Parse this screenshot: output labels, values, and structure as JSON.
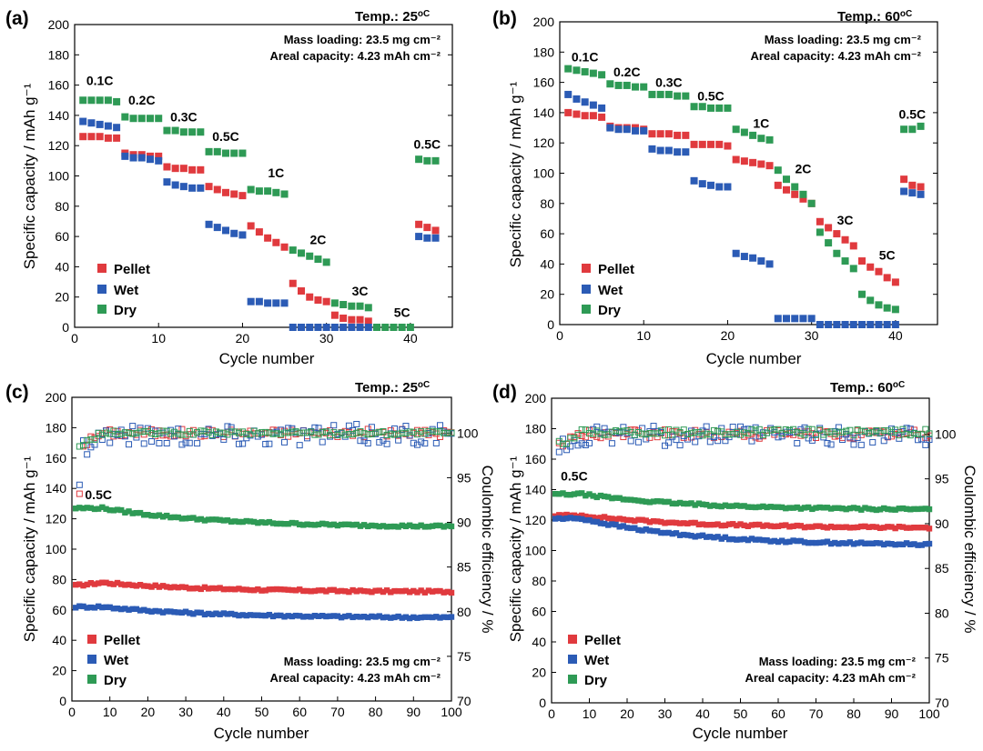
{
  "colors": {
    "pellet": "#e03a3e",
    "wet": "#2b5bb5",
    "dry": "#2e9a55"
  },
  "chart_data": [
    {
      "id": "a",
      "type": "scatter",
      "panel_label": "(a)",
      "temp_label": "Temp.: 25",
      "temp_unit": "oC",
      "info_lines": [
        "Mass loading: 23.5 mg cm⁻²",
        "Areal capacity: 4.23 mAh cm⁻²"
      ],
      "xlabel": "Cycle number",
      "ylabel": "Specific capacity / mAh g⁻¹",
      "xlim": [
        0,
        45
      ],
      "ylim": [
        0,
        200
      ],
      "xticks": [
        "0",
        "10",
        "20",
        "30",
        "40"
      ],
      "yticks": [
        "0",
        "20",
        "40",
        "60",
        "80",
        "100",
        "120",
        "140",
        "160",
        "180",
        "200"
      ],
      "legend": [
        "Pellet",
        "Wet",
        "Dry"
      ],
      "rate_labels": [
        {
          "text": "0.1C",
          "x": 3,
          "y": 160
        },
        {
          "text": "0.2C",
          "x": 8,
          "y": 147
        },
        {
          "text": "0.3C",
          "x": 13,
          "y": 136
        },
        {
          "text": "0.5C",
          "x": 18,
          "y": 123
        },
        {
          "text": "1C",
          "x": 24,
          "y": 99
        },
        {
          "text": "2C",
          "x": 29,
          "y": 55
        },
        {
          "text": "3C",
          "x": 34,
          "y": 21
        },
        {
          "text": "5C",
          "x": 39,
          "y": 7
        },
        {
          "text": "0.5C",
          "x": 42,
          "y": 118
        }
      ],
      "series": [
        {
          "name": "Pellet",
          "x": [
            1,
            2,
            3,
            4,
            5,
            6,
            7,
            8,
            9,
            10,
            11,
            12,
            13,
            14,
            15,
            16,
            17,
            18,
            19,
            20,
            21,
            22,
            23,
            24,
            25,
            26,
            27,
            28,
            29,
            30,
            31,
            32,
            33,
            34,
            35,
            41,
            42,
            43
          ],
          "values": [
            126,
            126,
            126,
            125,
            125,
            115,
            114,
            114,
            113,
            113,
            106,
            105,
            105,
            104,
            104,
            93,
            91,
            89,
            88,
            87,
            67,
            63,
            59,
            56,
            53,
            29,
            24,
            20,
            18,
            17,
            8,
            6,
            5,
            5,
            4,
            68,
            66,
            64
          ]
        },
        {
          "name": "Wet",
          "x": [
            1,
            2,
            3,
            4,
            5,
            6,
            7,
            8,
            9,
            10,
            11,
            12,
            13,
            14,
            15,
            16,
            17,
            18,
            19,
            20,
            21,
            22,
            23,
            24,
            25,
            26,
            27,
            28,
            29,
            30,
            31,
            32,
            33,
            34,
            35,
            41,
            42,
            43
          ],
          "values": [
            136,
            135,
            134,
            133,
            132,
            113,
            112,
            112,
            111,
            110,
            96,
            94,
            93,
            92,
            92,
            68,
            66,
            64,
            62,
            61,
            17,
            17,
            16,
            16,
            16,
            0,
            0,
            0,
            0,
            0,
            0,
            0,
            0,
            0,
            0,
            60,
            59,
            59
          ]
        },
        {
          "name": "Dry",
          "x": [
            1,
            2,
            3,
            4,
            5,
            6,
            7,
            8,
            9,
            10,
            11,
            12,
            13,
            14,
            15,
            16,
            17,
            18,
            19,
            20,
            21,
            22,
            23,
            24,
            25,
            26,
            27,
            28,
            29,
            30,
            31,
            32,
            33,
            34,
            35,
            36,
            37,
            38,
            39,
            40,
            41,
            42,
            43
          ],
          "values": [
            150,
            150,
            150,
            150,
            149,
            139,
            138,
            138,
            138,
            138,
            130,
            130,
            129,
            129,
            129,
            116,
            116,
            115,
            115,
            115,
            91,
            90,
            90,
            89,
            88,
            51,
            49,
            47,
            45,
            43,
            16,
            15,
            14,
            14,
            13,
            0,
            0,
            0,
            0,
            0,
            111,
            110,
            110
          ]
        }
      ]
    },
    {
      "id": "b",
      "type": "scatter",
      "panel_label": "(b)",
      "temp_label": "Temp.: 60",
      "temp_unit": "oC",
      "info_lines": [
        "Mass loading: 23.5 mg cm⁻²",
        "Areal capacity: 4.23 mAh cm⁻²"
      ],
      "xlabel": "Cycle number",
      "ylabel": "Specific capacity / mAh g⁻¹",
      "xlim": [
        0,
        45
      ],
      "ylim": [
        0,
        200
      ],
      "xticks": [
        "0",
        "10",
        "20",
        "30",
        "40"
      ],
      "yticks": [
        "0",
        "20",
        "40",
        "60",
        "80",
        "100",
        "120",
        "140",
        "160",
        "180",
        "200"
      ],
      "legend": [
        "Pellet",
        "Wet",
        "Dry"
      ],
      "rate_labels": [
        {
          "text": "0.1C",
          "x": 3,
          "y": 174
        },
        {
          "text": "0.2C",
          "x": 8,
          "y": 164
        },
        {
          "text": "0.3C",
          "x": 13,
          "y": 157
        },
        {
          "text": "0.5C",
          "x": 18,
          "y": 148
        },
        {
          "text": "1C",
          "x": 24,
          "y": 130
        },
        {
          "text": "2C",
          "x": 29,
          "y": 100
        },
        {
          "text": "3C",
          "x": 34,
          "y": 66
        },
        {
          "text": "5C",
          "x": 39,
          "y": 43
        },
        {
          "text": "0.5C",
          "x": 42,
          "y": 136
        }
      ],
      "series": [
        {
          "name": "Pellet",
          "x": [
            1,
            2,
            3,
            4,
            5,
            6,
            7,
            8,
            9,
            10,
            11,
            12,
            13,
            14,
            15,
            16,
            17,
            18,
            19,
            20,
            21,
            22,
            23,
            24,
            25,
            26,
            27,
            28,
            29,
            30,
            31,
            32,
            33,
            34,
            35,
            36,
            37,
            38,
            39,
            40,
            41,
            42,
            43
          ],
          "values": [
            140,
            139,
            138,
            138,
            137,
            131,
            130,
            130,
            130,
            129,
            126,
            126,
            126,
            125,
            125,
            119,
            119,
            119,
            119,
            118,
            109,
            108,
            107,
            106,
            105,
            92,
            89,
            86,
            83,
            80,
            68,
            64,
            60,
            56,
            52,
            42,
            38,
            35,
            31,
            28,
            96,
            92,
            91
          ]
        },
        {
          "name": "Wet",
          "x": [
            1,
            2,
            3,
            4,
            5,
            6,
            7,
            8,
            9,
            10,
            11,
            12,
            13,
            14,
            15,
            16,
            17,
            18,
            19,
            20,
            21,
            22,
            23,
            24,
            25,
            26,
            27,
            28,
            29,
            30,
            31,
            32,
            33,
            34,
            35,
            36,
            37,
            38,
            39,
            40,
            41,
            42,
            43
          ],
          "values": [
            152,
            149,
            147,
            145,
            143,
            130,
            129,
            129,
            128,
            128,
            116,
            115,
            115,
            114,
            114,
            95,
            93,
            92,
            91,
            91,
            47,
            45,
            44,
            42,
            40,
            4,
            4,
            4,
            4,
            4,
            0,
            0,
            0,
            0,
            0,
            0,
            0,
            0,
            0,
            0,
            88,
            87,
            86
          ]
        },
        {
          "name": "Dry",
          "x": [
            1,
            2,
            3,
            4,
            5,
            6,
            7,
            8,
            9,
            10,
            11,
            12,
            13,
            14,
            15,
            16,
            17,
            18,
            19,
            20,
            21,
            22,
            23,
            24,
            25,
            26,
            27,
            28,
            29,
            30,
            31,
            32,
            33,
            34,
            35,
            36,
            37,
            38,
            39,
            40,
            41,
            42,
            43
          ],
          "values": [
            169,
            168,
            167,
            166,
            165,
            159,
            158,
            158,
            157,
            157,
            152,
            152,
            152,
            151,
            151,
            144,
            144,
            143,
            143,
            143,
            129,
            127,
            125,
            123,
            122,
            102,
            96,
            91,
            86,
            80,
            61,
            54,
            47,
            42,
            37,
            20,
            16,
            13,
            11,
            10,
            129,
            129,
            131
          ]
        }
      ]
    },
    {
      "id": "c",
      "type": "scatter",
      "panel_label": "(c)",
      "temp_label": "Temp.: 25",
      "temp_unit": "oC",
      "info_lines": [
        "Mass loading: 23.5 mg cm⁻²",
        "Areal capacity: 4.23 mAh cm⁻²"
      ],
      "xlabel": "Cycle number",
      "ylabel": "Specific capacity / mAh g⁻¹",
      "y2label": "Coulombic efficiency / %",
      "xlim": [
        0,
        100
      ],
      "ylim": [
        0,
        200
      ],
      "y2lim": [
        70,
        104
      ],
      "xticks": [
        "0",
        "10",
        "20",
        "30",
        "40",
        "50",
        "60",
        "70",
        "80",
        "90",
        "100"
      ],
      "yticks": [
        "0",
        "20",
        "40",
        "60",
        "80",
        "100",
        "120",
        "140",
        "160",
        "180",
        "200"
      ],
      "y2ticks": [
        "70",
        "75",
        "80",
        "85",
        "90",
        "95",
        "100"
      ],
      "legend": [
        "Pellet",
        "Wet",
        "Dry"
      ],
      "rate_labels": [
        {
          "text": "0.5C",
          "x": 7,
          "y": 133
        }
      ],
      "capacity": [
        {
          "name": "Pellet",
          "start": 76,
          "peak": 78,
          "end": 72
        },
        {
          "name": "Wet",
          "start": 62,
          "peak": 62,
          "end": 55
        },
        {
          "name": "Dry",
          "start": 127,
          "peak": 127,
          "end": 115
        }
      ],
      "efficiency": [
        {
          "name": "Pellet",
          "first": 93.2,
          "mean": 100,
          "spread": 0.45
        },
        {
          "name": "Wet",
          "first": 94.2,
          "mean": 99.8,
          "spread": 1.2
        },
        {
          "name": "Dry",
          "first": 98.5,
          "mean": 100,
          "spread": 0.25
        }
      ]
    },
    {
      "id": "d",
      "type": "scatter",
      "panel_label": "(d)",
      "temp_label": "Temp.: 60",
      "temp_unit": "oC",
      "info_lines": [
        "Mass loading: 23.5 mg cm⁻²",
        "Areal capacity: 4.23 mAh cm⁻²"
      ],
      "xlabel": "Cycle number",
      "ylabel": "Specific capacity / mAh g⁻¹",
      "y2label": "Coulombic efficiency / %",
      "xlim": [
        0,
        100
      ],
      "ylim": [
        0,
        200
      ],
      "y2lim": [
        70,
        104
      ],
      "xticks": [
        "0",
        "10",
        "20",
        "30",
        "40",
        "50",
        "60",
        "70",
        "80",
        "90",
        "100"
      ],
      "yticks": [
        "0",
        "20",
        "40",
        "60",
        "80",
        "100",
        "120",
        "140",
        "160",
        "180",
        "200"
      ],
      "y2ticks": [
        "70",
        "75",
        "80",
        "85",
        "90",
        "95",
        "100"
      ],
      "legend": [
        "Pellet",
        "Wet",
        "Dry"
      ],
      "rate_labels": [
        {
          "text": "0.5C",
          "x": 6,
          "y": 146
        }
      ],
      "capacity": [
        {
          "name": "Pellet",
          "start": 123,
          "peak": 123,
          "end": 115
        },
        {
          "name": "Wet",
          "start": 121,
          "peak": 121,
          "end": 104
        },
        {
          "name": "Dry",
          "start": 137,
          "peak": 137,
          "end": 127
        }
      ],
      "efficiency": [
        {
          "name": "Pellet",
          "first": 99,
          "mean": 100,
          "spread": 0.5
        },
        {
          "name": "Wet",
          "first": 98,
          "mean": 99.8,
          "spread": 1.1
        },
        {
          "name": "Dry",
          "first": 99.2,
          "mean": 100.2,
          "spread": 0.35
        }
      ]
    }
  ]
}
